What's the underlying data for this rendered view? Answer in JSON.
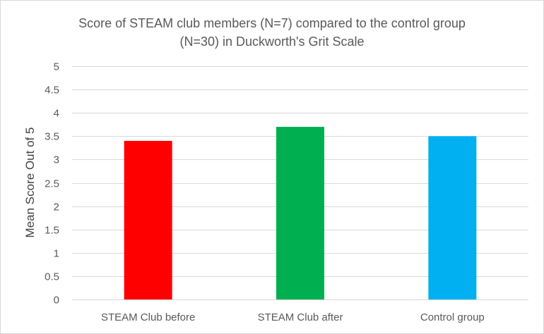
{
  "chart_data": {
    "type": "bar",
    "title_lines": [
      "Score of STEAM club members (N=7) compared to the control group",
      "(N=30) in Duckworth's Grit Scale"
    ],
    "xlabel": "",
    "ylabel": "Mean Score Out of 5",
    "categories": [
      "STEAM Club before",
      "STEAM Club after",
      "Control group"
    ],
    "values": [
      3.4,
      3.7,
      3.5
    ],
    "bar_colors": [
      "#ff0000",
      "#00b050",
      "#00b0f0"
    ],
    "ylim": [
      0,
      5
    ],
    "yticks": [
      "0",
      "0.5",
      "1",
      "1.5",
      "2",
      "2.5",
      "3",
      "3.5",
      "4",
      "4.5",
      "5"
    ],
    "grid": true,
    "legend": "none"
  }
}
